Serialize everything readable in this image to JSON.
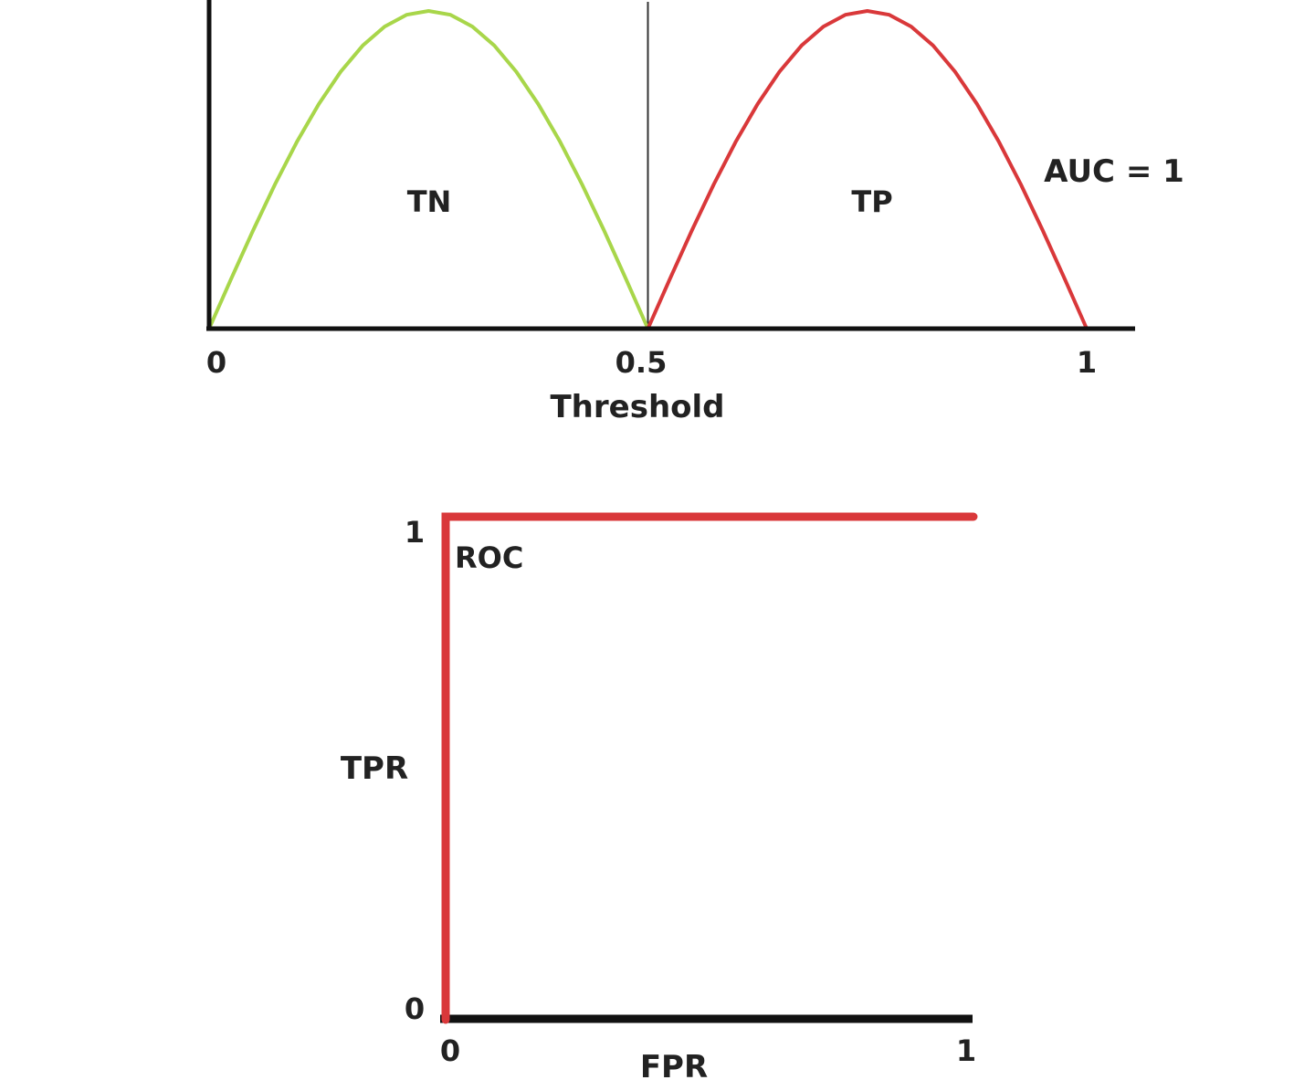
{
  "chart_data": [
    {
      "type": "line",
      "x_ticks": [
        "0",
        "0.5",
        "1"
      ],
      "xlabel": "Threshold",
      "xlim": [
        0,
        1
      ],
      "ylim": [
        0,
        1
      ],
      "grid": false,
      "threshold_line": 0.5,
      "annotation": "AUC = 1",
      "series": [
        {
          "name": "TN",
          "color": "#a8d64a",
          "x": [
            0,
            0.025,
            0.05,
            0.075,
            0.1,
            0.125,
            0.15,
            0.175,
            0.2,
            0.225,
            0.25,
            0.275,
            0.3,
            0.325,
            0.35,
            0.375,
            0.4,
            0.425,
            0.45,
            0.475,
            0.5
          ],
          "y": [
            0,
            0.156,
            0.309,
            0.454,
            0.588,
            0.707,
            0.809,
            0.891,
            0.951,
            0.988,
            1,
            0.988,
            0.951,
            0.891,
            0.809,
            0.707,
            0.588,
            0.454,
            0.309,
            0.156,
            0
          ]
        },
        {
          "name": "TP",
          "color": "#d9383a",
          "x": [
            0.5,
            0.525,
            0.55,
            0.575,
            0.6,
            0.625,
            0.65,
            0.675,
            0.7,
            0.725,
            0.75,
            0.775,
            0.8,
            0.825,
            0.85,
            0.875,
            0.9,
            0.925,
            0.95,
            0.975,
            1
          ],
          "y": [
            0,
            0.156,
            0.309,
            0.454,
            0.588,
            0.707,
            0.809,
            0.891,
            0.951,
            0.988,
            1,
            0.988,
            0.951,
            0.891,
            0.809,
            0.707,
            0.588,
            0.454,
            0.309,
            0.156,
            0
          ]
        }
      ]
    },
    {
      "type": "line",
      "xlabel": "FPR",
      "ylabel": "TPR",
      "x_ticks": [
        "0",
        "1"
      ],
      "y_ticks": [
        "0",
        "1"
      ],
      "xlim": [
        0,
        1
      ],
      "ylim": [
        0,
        1
      ],
      "grid": false,
      "series": [
        {
          "name": "ROC",
          "color": "#d9383a",
          "x": [
            0,
            0,
            1
          ],
          "y": [
            0,
            1,
            1
          ]
        }
      ]
    }
  ]
}
